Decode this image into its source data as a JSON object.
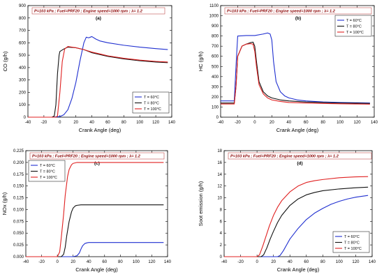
{
  "colors": {
    "s60": "#1f2fd0",
    "s80": "#111111",
    "s100": "#e02020",
    "header_text": "#8b0000",
    "header_border": "#c0504d"
  },
  "chart_data": [
    {
      "type": "line",
      "panel": "(a)",
      "header": "P=103 kPa  ;  Fuel=PRF20  ;  Engine speed=1000 rpm  ;  λ= 1.2",
      "xlabel": "Crank Angle (deg)",
      "ylabel": "CO (g/h)",
      "xlim": [
        -40,
        140
      ],
      "ylim": [
        0,
        900
      ],
      "xticks": [
        -40,
        -20,
        0,
        20,
        40,
        60,
        80,
        100,
        120,
        140
      ],
      "yticks": [
        0,
        100,
        200,
        300,
        400,
        500,
        600,
        700,
        800,
        900
      ],
      "ytick_labels": [
        "0",
        "100",
        "200",
        "300",
        "400",
        "500",
        "600",
        "700",
        "800",
        "900"
      ],
      "legend_position": "bottom-right",
      "series": [
        {
          "name": "T = 60°C",
          "color_key": "s60",
          "x": [
            -40,
            -10,
            0,
            5,
            10,
            15,
            20,
            25,
            30,
            33,
            36,
            40,
            45,
            50,
            60,
            80,
            100,
            120,
            135
          ],
          "y": [
            0,
            0,
            5,
            20,
            60,
            150,
            280,
            450,
            600,
            645,
            640,
            650,
            630,
            615,
            600,
            580,
            565,
            553,
            545
          ]
        },
        {
          "name": "T = 80°C",
          "color_key": "s80",
          "x": [
            -40,
            -10,
            -7,
            -5,
            -3,
            -1,
            0,
            5,
            10,
            20,
            30,
            40,
            50,
            60,
            80,
            100,
            120,
            135
          ],
          "y": [
            0,
            0,
            10,
            100,
            350,
            500,
            530,
            550,
            565,
            560,
            545,
            520,
            505,
            490,
            470,
            455,
            445,
            440
          ]
        },
        {
          "name": "T = 100°C",
          "color_key": "s100",
          "x": [
            -40,
            -5,
            -3,
            0,
            3,
            6,
            10,
            15,
            20,
            30,
            40,
            50,
            60,
            80,
            100,
            120,
            135
          ],
          "y": [
            0,
            0,
            10,
            200,
            450,
            550,
            570,
            565,
            560,
            545,
            525,
            510,
            495,
            475,
            460,
            450,
            445
          ]
        }
      ]
    },
    {
      "type": "line",
      "panel": "(b)",
      "header": "P=103 kPa  ;  Fuel=PRF20  ;  Engine speed=1000 rpm  ;  λ= 1.2",
      "xlabel": "Crank Angle (deg)",
      "ylabel": "HC (g/h)",
      "xlim": [
        -40,
        140
      ],
      "ylim": [
        0,
        1100
      ],
      "xticks": [
        -40,
        -20,
        0,
        20,
        40,
        60,
        80,
        100,
        120,
        140
      ],
      "yticks": [
        0,
        100,
        200,
        300,
        400,
        500,
        600,
        700,
        800,
        900,
        1000,
        1100
      ],
      "ytick_labels": [
        "0",
        "100",
        "200",
        "300",
        "400",
        "500",
        "600",
        "700",
        "800",
        "900",
        "1000",
        "1100"
      ],
      "legend_position": "top-right",
      "series": [
        {
          "name": "T = 60°C",
          "color_key": "s60",
          "x": [
            -40,
            -24,
            -22,
            -20,
            -10,
            0,
            10,
            15,
            18,
            20,
            22,
            25,
            30,
            35,
            40,
            50,
            60,
            80,
            100,
            120,
            135
          ],
          "y": [
            160,
            160,
            500,
            800,
            805,
            805,
            820,
            830,
            820,
            760,
            550,
            350,
            250,
            210,
            190,
            170,
            160,
            150,
            145,
            142,
            140
          ]
        },
        {
          "name": "T = 80°C",
          "color_key": "s80",
          "x": [
            -40,
            -24,
            -22,
            -20,
            -15,
            -10,
            -5,
            -2,
            0,
            2,
            5,
            10,
            15,
            20,
            30,
            40,
            60,
            80,
            100,
            120,
            135
          ],
          "y": [
            140,
            140,
            300,
            600,
            700,
            720,
            735,
            740,
            700,
            550,
            350,
            250,
            210,
            190,
            170,
            160,
            150,
            145,
            140,
            138,
            135
          ]
        },
        {
          "name": "T = 100°C",
          "color_key": "s100",
          "x": [
            -40,
            -24,
            -22,
            -20,
            -15,
            -10,
            -5,
            -2,
            0,
            2,
            5,
            10,
            15,
            20,
            30,
            40,
            60,
            80,
            100,
            120,
            135
          ],
          "y": [
            130,
            130,
            300,
            600,
            700,
            720,
            725,
            720,
            650,
            500,
            320,
            230,
            190,
            170,
            155,
            145,
            140,
            135,
            132,
            130,
            128
          ]
        }
      ]
    },
    {
      "type": "line",
      "panel": "(c)",
      "header": "P=103 kPa  ;  Fuel=PRF20  ;  Engine speed=1000 rpm  ;  λ= 1.2",
      "xlabel": "Crank Angle (deg)",
      "ylabel": "NOx (g/h)",
      "xlim": [
        -40,
        140
      ],
      "ylim": [
        0,
        0.225
      ],
      "xticks": [
        -40,
        -20,
        0,
        20,
        40,
        60,
        80,
        100,
        120,
        140
      ],
      "yticks": [
        0,
        0.025,
        0.05,
        0.075,
        0.1,
        0.125,
        0.15,
        0.175,
        0.2,
        0.225
      ],
      "ytick_labels": [
        "0.000",
        "0.025",
        "0.050",
        "0.075",
        "0.100",
        "0.125",
        "0.150",
        "0.175",
        "0.200",
        "0.225"
      ],
      "legend_position": "top-left",
      "series": [
        {
          "name": "T = 60°C",
          "color_key": "s60",
          "x": [
            -40,
            20,
            25,
            28,
            30,
            32,
            35,
            38,
            40,
            50,
            80,
            120,
            135
          ],
          "y": [
            0,
            0,
            0.002,
            0.008,
            0.016,
            0.023,
            0.028,
            0.0295,
            0.03,
            0.03,
            0.03,
            0.03,
            0.03
          ]
        },
        {
          "name": "T = 80°C",
          "color_key": "s80",
          "x": [
            -40,
            5,
            8,
            10,
            12,
            15,
            18,
            20,
            23,
            25,
            30,
            50,
            80,
            120,
            135
          ],
          "y": [
            0,
            0,
            0.005,
            0.02,
            0.045,
            0.075,
            0.095,
            0.103,
            0.108,
            0.109,
            0.11,
            0.11,
            0.11,
            0.11,
            0.11
          ]
        },
        {
          "name": "T = 100°C",
          "color_key": "s100",
          "x": [
            -40,
            0,
            3,
            5,
            8,
            10,
            13,
            15,
            18,
            20,
            25,
            30,
            50,
            80,
            120,
            135
          ],
          "y": [
            0,
            0,
            0.01,
            0.04,
            0.09,
            0.13,
            0.17,
            0.185,
            0.195,
            0.198,
            0.2,
            0.2,
            0.2,
            0.2,
            0.2,
            0.2
          ]
        }
      ]
    },
    {
      "type": "line",
      "panel": "(d)",
      "header": "P=103 kPa  ;  Fuel=PRF20  ;  Engine speed=1000 rpm  ;  λ= 1.2",
      "xlabel": "Crank Angle (deg)",
      "ylabel": "Soot emission (g/h)",
      "xlim": [
        -40,
        140
      ],
      "ylim": [
        0,
        18
      ],
      "xticks": [
        -40,
        -20,
        0,
        20,
        40,
        60,
        80,
        100,
        120,
        140
      ],
      "yticks": [
        0,
        2,
        4,
        6,
        8,
        10,
        12,
        14,
        16,
        18
      ],
      "ytick_labels": [
        "0",
        "2",
        "4",
        "6",
        "8",
        "10",
        "12",
        "14",
        "16",
        "18"
      ],
      "legend_position": "bottom-right",
      "series": [
        {
          "name": "T = 60°C",
          "color_key": "s60",
          "x": [
            -40,
            25,
            28,
            32,
            36,
            40,
            50,
            60,
            70,
            80,
            90,
            100,
            110,
            120,
            135
          ],
          "y": [
            0,
            0,
            0.2,
            1.0,
            2.0,
            3.0,
            4.8,
            6.3,
            7.4,
            8.2,
            8.9,
            9.4,
            9.8,
            10.1,
            10.4
          ]
        },
        {
          "name": "T = 80°C",
          "color_key": "s80",
          "x": [
            -40,
            5,
            8,
            12,
            16,
            20,
            25,
            30,
            40,
            50,
            60,
            70,
            80,
            100,
            120,
            135
          ],
          "y": [
            0,
            0,
            0.3,
            1.5,
            3.0,
            4.3,
            5.8,
            7.0,
            8.7,
            9.8,
            10.5,
            10.9,
            11.2,
            11.5,
            11.7,
            11.8
          ]
        },
        {
          "name": "T = 100°C",
          "color_key": "s100",
          "x": [
            -40,
            0,
            3,
            7,
            11,
            15,
            20,
            25,
            30,
            40,
            50,
            60,
            70,
            80,
            100,
            120,
            135
          ],
          "y": [
            0,
            0,
            0.3,
            1.8,
            3.5,
            5.2,
            7.0,
            8.4,
            9.5,
            11.0,
            12.0,
            12.6,
            12.9,
            13.1,
            13.4,
            13.55,
            13.6
          ]
        }
      ]
    }
  ]
}
